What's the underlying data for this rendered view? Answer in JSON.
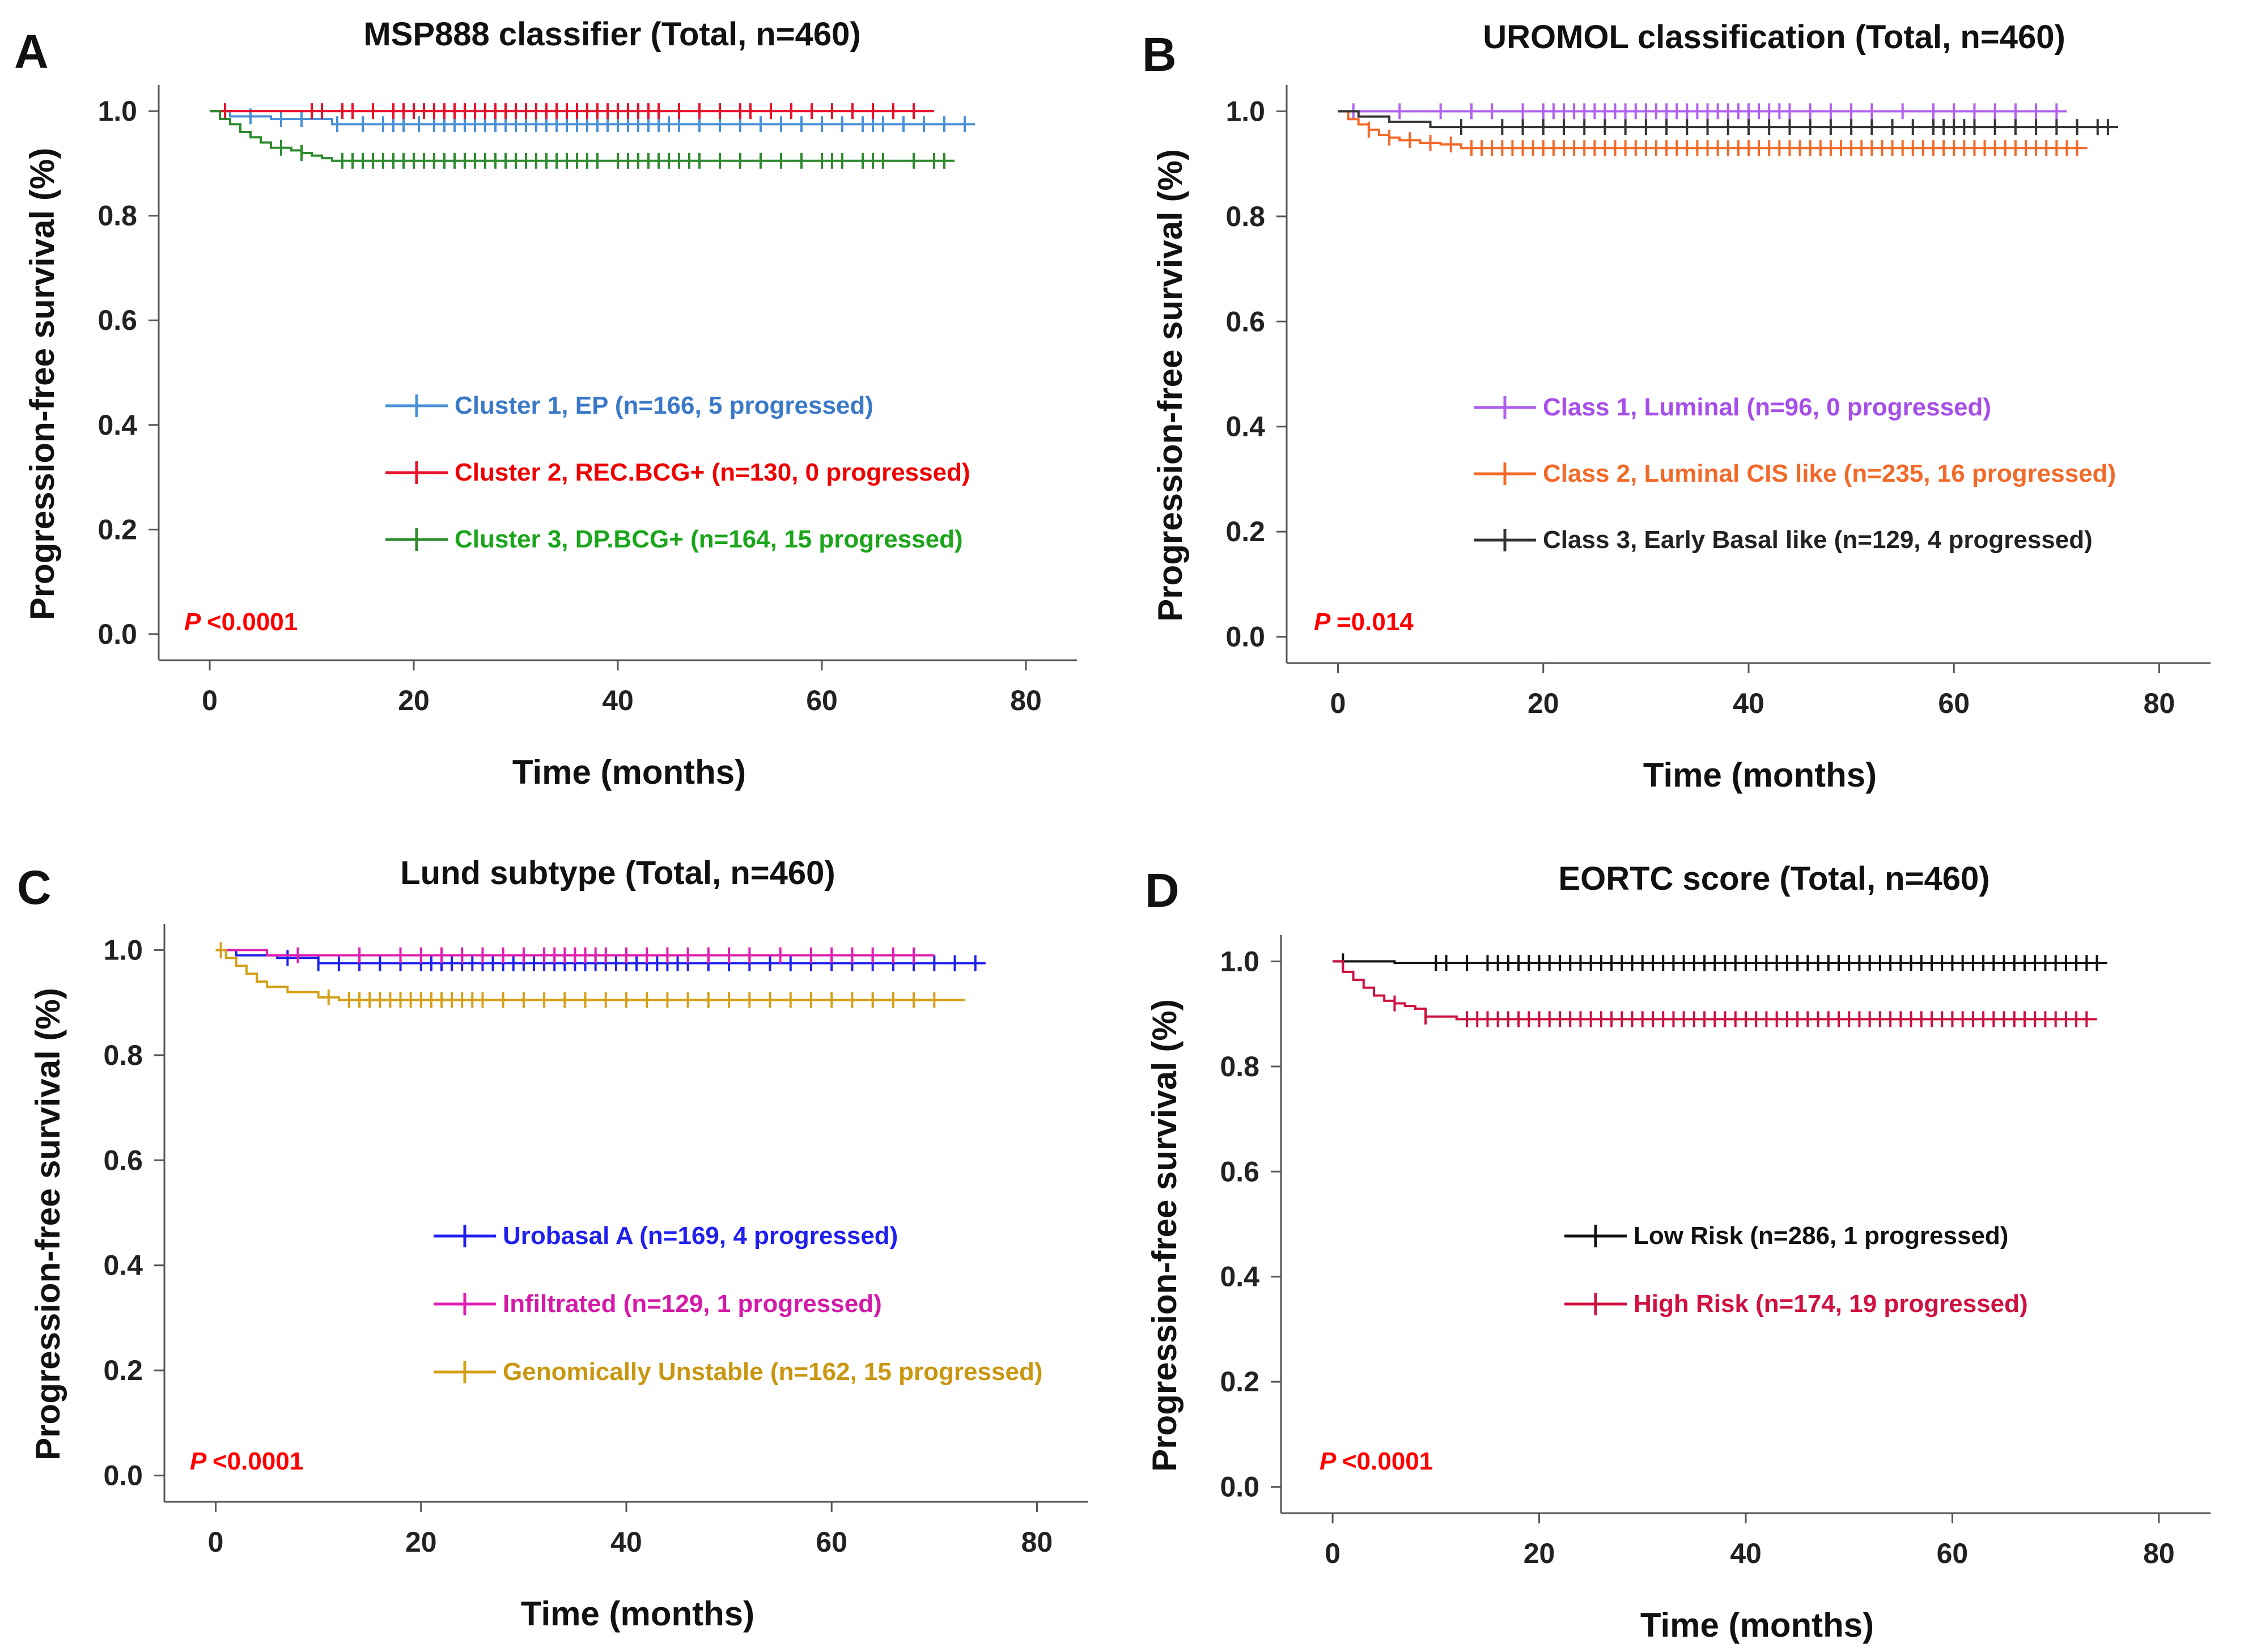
{
  "chart_data": [
    {
      "type": "line",
      "panel": "A",
      "title": "MSP888 classifier (Total, n=460)",
      "xlabel": "Time (months)",
      "ylabel": "Progression-free survival (%)",
      "xlim": [
        -5,
        85
      ],
      "ylim": [
        -0.05,
        1.05
      ],
      "xticks": [
        0,
        20,
        40,
        60,
        80
      ],
      "yticks": [
        0.0,
        0.2,
        0.4,
        0.6,
        0.8,
        1.0
      ],
      "xtick_labels": [
        "0",
        "20",
        "40",
        "60",
        "80"
      ],
      "ytick_labels": [
        "0.0",
        "0.2",
        "0.4",
        "0.6",
        "0.8",
        "1.0"
      ],
      "p_label": "P",
      "p_text": "<0.0001",
      "series": [
        {
          "name": "Cluster 1, EP (n=166, 5 progressed)",
          "color": "#4a90d9",
          "label_color": "#3a78c8",
          "steps": [
            [
              0,
              1.0
            ],
            [
              2,
              0.99
            ],
            [
              6,
              0.985
            ],
            [
              12,
              0.975
            ],
            [
              75,
              0.975
            ]
          ],
          "censor": [
            4,
            7,
            9,
            12.5,
            15,
            17,
            18,
            19,
            20.5,
            22,
            23,
            24,
            25,
            26,
            27,
            28,
            29,
            30,
            31,
            32,
            33,
            34,
            35,
            36,
            37,
            38,
            39,
            40,
            41,
            42,
            43,
            44,
            45,
            46,
            48,
            50,
            52,
            54,
            56,
            58,
            60,
            62,
            64,
            65,
            66,
            68,
            70,
            72,
            74
          ]
        },
        {
          "name": "Cluster 2, REC.BCG+ (n=130, 0 progressed)",
          "color": "#e8102a",
          "label_color": "#ee0000",
          "steps": [
            [
              0,
              1.0
            ],
            [
              71,
              1.0
            ]
          ],
          "censor": [
            1.5,
            10,
            11,
            13,
            14,
            16,
            18,
            19,
            20,
            21,
            22,
            23,
            24,
            25,
            26,
            27,
            28,
            29,
            30,
            31,
            32,
            33,
            34,
            35,
            36,
            37,
            38,
            39,
            40,
            41,
            42,
            43,
            44,
            46,
            48,
            50,
            52,
            53,
            55,
            57,
            59,
            61,
            63,
            65,
            67,
            69
          ]
        },
        {
          "name": "Cluster 3, DP.BCG+ (n=164, 15 progressed)",
          "color": "#2e8b2e",
          "label_color": "#1aa51a",
          "steps": [
            [
              0,
              1.0
            ],
            [
              1,
              0.985
            ],
            [
              2,
              0.975
            ],
            [
              3,
              0.96
            ],
            [
              4,
              0.95
            ],
            [
              5,
              0.94
            ],
            [
              6,
              0.93
            ],
            [
              8,
              0.925
            ],
            [
              9,
              0.92
            ],
            [
              10,
              0.915
            ],
            [
              11,
              0.91
            ],
            [
              12,
              0.905
            ],
            [
              73,
              0.905
            ]
          ],
          "censor": [
            7,
            9,
            13,
            14,
            15,
            16,
            17,
            18,
            19,
            20,
            21,
            22,
            23,
            24,
            25,
            26,
            27,
            28,
            29,
            30,
            31,
            32,
            33,
            34,
            35,
            36,
            37,
            38,
            40,
            41,
            42,
            43,
            44,
            45,
            46,
            47,
            48,
            50,
            52,
            54,
            56,
            58,
            60,
            61,
            62,
            64,
            65,
            66,
            69,
            71,
            72
          ]
        }
      ]
    },
    {
      "type": "line",
      "panel": "B",
      "title": "UROMOL classification (Total, n=460)",
      "xlabel": "Time (months)",
      "ylabel": "Progression-free survival (%)",
      "xlim": [
        -5,
        85
      ],
      "ylim": [
        -0.05,
        1.05
      ],
      "xticks": [
        0,
        20,
        40,
        60,
        80
      ],
      "yticks": [
        0.0,
        0.2,
        0.4,
        0.6,
        0.8,
        1.0
      ],
      "xtick_labels": [
        "0",
        "20",
        "40",
        "60",
        "80"
      ],
      "ytick_labels": [
        "0.0",
        "0.2",
        "0.4",
        "0.6",
        "0.8",
        "1.0"
      ],
      "p_label": "P",
      "p_text": "=0.014",
      "series": [
        {
          "name": "Class 1, Luminal  (n=96, 0 progressed)",
          "color": "#b060ee",
          "label_color": "#a64ee8",
          "steps": [
            [
              0,
              1.0
            ],
            [
              71,
              1.0
            ]
          ],
          "censor": [
            1.5,
            6,
            10,
            13,
            15,
            18,
            20,
            21,
            22,
            23,
            24,
            25,
            26,
            27,
            28,
            29,
            30,
            31,
            32,
            33,
            34,
            35,
            36,
            37,
            38,
            39,
            40,
            41,
            42,
            43,
            44,
            46,
            48,
            50,
            52,
            55,
            58,
            60,
            62,
            64,
            66,
            68,
            70
          ]
        },
        {
          "name": "Class 2, Luminal CIS like (n=235, 16 progressed)",
          "color": "#f26a2a",
          "label_color": "#f26a2a",
          "steps": [
            [
              0,
              1.0
            ],
            [
              1,
              0.985
            ],
            [
              2,
              0.975
            ],
            [
              3,
              0.965
            ],
            [
              4,
              0.955
            ],
            [
              5,
              0.95
            ],
            [
              6,
              0.945
            ],
            [
              8,
              0.94
            ],
            [
              10,
              0.937
            ],
            [
              12,
              0.93
            ],
            [
              73,
              0.93
            ]
          ],
          "censor": [
            3,
            5,
            7,
            9,
            11,
            13,
            14,
            15,
            16,
            17,
            18,
            19,
            20,
            21,
            22,
            23,
            24,
            25,
            26,
            27,
            28,
            29,
            30,
            31,
            32,
            33,
            34,
            35,
            36,
            37,
            38,
            39,
            40,
            41,
            42,
            43,
            44,
            45,
            46,
            47,
            48,
            49,
            50,
            51,
            52,
            53,
            54,
            55,
            56,
            57,
            58,
            59,
            60,
            61,
            62,
            63,
            64,
            65,
            66,
            67,
            68,
            69,
            70,
            71,
            72
          ]
        },
        {
          "name": "Class 3, Early Basal like (n=129, 4 progressed)",
          "color": "#333333",
          "label_color": "#222222",
          "steps": [
            [
              0,
              1.0
            ],
            [
              2,
              0.99
            ],
            [
              5,
              0.98
            ],
            [
              9,
              0.97
            ],
            [
              76,
              0.97
            ]
          ],
          "censor": [
            12,
            16,
            18,
            20,
            22,
            24,
            26,
            28,
            30,
            32,
            34,
            36,
            38,
            40,
            42,
            44,
            46,
            48,
            50,
            52,
            54,
            56,
            58,
            59,
            60,
            61,
            62,
            64,
            66,
            68,
            70,
            72,
            74,
            75
          ]
        }
      ]
    },
    {
      "type": "line",
      "panel": "C",
      "title": "Lund subtype (Total, n=460)",
      "xlabel": "Time (months)",
      "ylabel": "Progression-free survival (%)",
      "xlim": [
        -5,
        85
      ],
      "ylim": [
        -0.05,
        1.05
      ],
      "xticks": [
        0,
        20,
        40,
        60,
        80
      ],
      "yticks": [
        0.0,
        0.2,
        0.4,
        0.6,
        0.8,
        1.0
      ],
      "xtick_labels": [
        "0",
        "20",
        "40",
        "60",
        "80"
      ],
      "ytick_labels": [
        "0.0",
        "0.2",
        "0.4",
        "0.6",
        "0.8",
        "1.0"
      ],
      "p_label": "P",
      "p_text": "<0.0001",
      "series": [
        {
          "name": "Urobasal A (n=169, 4 progressed)",
          "color": "#2020ee",
          "label_color": "#2020ee",
          "steps": [
            [
              0,
              1.0
            ],
            [
              2,
              0.99
            ],
            [
              6,
              0.985
            ],
            [
              10,
              0.975
            ],
            [
              75,
              0.975
            ]
          ],
          "censor": [
            7,
            10,
            12,
            14,
            16,
            18,
            20,
            21,
            22,
            23,
            24,
            25,
            26,
            27,
            28,
            29,
            30,
            31,
            32,
            33,
            34,
            35,
            36,
            37,
            38,
            39,
            40,
            41,
            42,
            43,
            44,
            45,
            46,
            48,
            50,
            52,
            54,
            56,
            58,
            60,
            62,
            64,
            66,
            68,
            70,
            72,
            74
          ]
        },
        {
          "name": "Infiltrated (n=129, 1 progressed)",
          "color": "#e020b0",
          "label_color": "#d41aa8",
          "steps": [
            [
              0,
              1.0
            ],
            [
              5,
              0.99
            ],
            [
              70,
              0.99
            ]
          ],
          "censor": [
            8,
            14,
            18,
            20,
            22,
            24,
            26,
            28,
            30,
            32,
            33,
            34,
            35,
            36,
            37,
            38,
            40,
            42,
            44,
            46,
            48,
            50,
            52,
            55,
            58,
            60,
            62,
            64,
            66,
            68
          ]
        },
        {
          "name": "Genomically Unstable (n=162, 15 progressed)",
          "color": "#d4a017",
          "label_color": "#c9960f",
          "steps": [
            [
              0,
              1.0
            ],
            [
              1,
              0.985
            ],
            [
              2,
              0.97
            ],
            [
              3,
              0.955
            ],
            [
              4,
              0.94
            ],
            [
              5,
              0.93
            ],
            [
              7,
              0.92
            ],
            [
              10,
              0.91
            ],
            [
              12,
              0.905
            ],
            [
              73,
              0.905
            ]
          ],
          "censor": [
            0.5,
            11,
            13,
            14,
            15,
            16,
            17,
            18,
            19,
            20,
            21,
            22,
            23,
            24,
            25,
            26,
            28,
            30,
            32,
            34,
            36,
            38,
            40,
            42,
            44,
            46,
            48,
            50,
            52,
            54,
            56,
            58,
            60,
            62,
            64,
            66,
            68,
            70
          ]
        }
      ]
    },
    {
      "type": "line",
      "panel": "D",
      "title": "EORTC score (Total, n=460)",
      "xlabel": "Time (months)",
      "ylabel": "Progression-free survival (%)",
      "xlim": [
        -5,
        85
      ],
      "ylim": [
        -0.05,
        1.05
      ],
      "xticks": [
        0,
        20,
        40,
        60,
        80
      ],
      "yticks": [
        0.0,
        0.2,
        0.4,
        0.6,
        0.8,
        1.0
      ],
      "xtick_labels": [
        "0",
        "20",
        "40",
        "60",
        "80"
      ],
      "ytick_labels": [
        "0.0",
        "0.2",
        "0.4",
        "0.6",
        "0.8",
        "1.0"
      ],
      "p_label": "P",
      "p_text": "<0.0001",
      "series": [
        {
          "name": "Low Risk (n=286, 1 progressed)",
          "color": "#111111",
          "label_color": "#111111",
          "steps": [
            [
              0,
              1.0
            ],
            [
              6,
              0.997
            ],
            [
              75,
              0.997
            ]
          ],
          "censor": [
            1,
            10,
            11,
            13,
            15,
            16,
            17,
            18,
            19,
            20,
            21,
            22,
            23,
            24,
            25,
            26,
            27,
            28,
            29,
            30,
            31,
            32,
            33,
            34,
            35,
            36,
            37,
            38,
            39,
            40,
            41,
            42,
            43,
            44,
            45,
            46,
            47,
            48,
            49,
            50,
            51,
            52,
            53,
            54,
            55,
            56,
            57,
            58,
            59,
            60,
            61,
            62,
            63,
            64,
            65,
            66,
            67,
            68,
            69,
            70,
            71,
            72,
            73,
            74
          ]
        },
        {
          "name": "High Risk (n=174, 19 progressed)",
          "color": "#cc1040",
          "label_color": "#d01040",
          "steps": [
            [
              0,
              1.0
            ],
            [
              1,
              0.98
            ],
            [
              2,
              0.965
            ],
            [
              3,
              0.95
            ],
            [
              4,
              0.935
            ],
            [
              5,
              0.925
            ],
            [
              6,
              0.92
            ],
            [
              7,
              0.915
            ],
            [
              8,
              0.91
            ],
            [
              9,
              0.895
            ],
            [
              12,
              0.89
            ],
            [
              74,
              0.89
            ]
          ],
          "censor": [
            6,
            9,
            13,
            14,
            15,
            16,
            17,
            18,
            19,
            20,
            21,
            22,
            23,
            24,
            25,
            26,
            27,
            28,
            29,
            30,
            31,
            32,
            33,
            34,
            35,
            36,
            37,
            38,
            39,
            40,
            41,
            42,
            43,
            44,
            45,
            46,
            47,
            48,
            49,
            50,
            51,
            52,
            53,
            54,
            55,
            56,
            57,
            58,
            59,
            60,
            61,
            62,
            63,
            64,
            65,
            66,
            67,
            68,
            69,
            70,
            71,
            72,
            73
          ]
        }
      ]
    }
  ]
}
